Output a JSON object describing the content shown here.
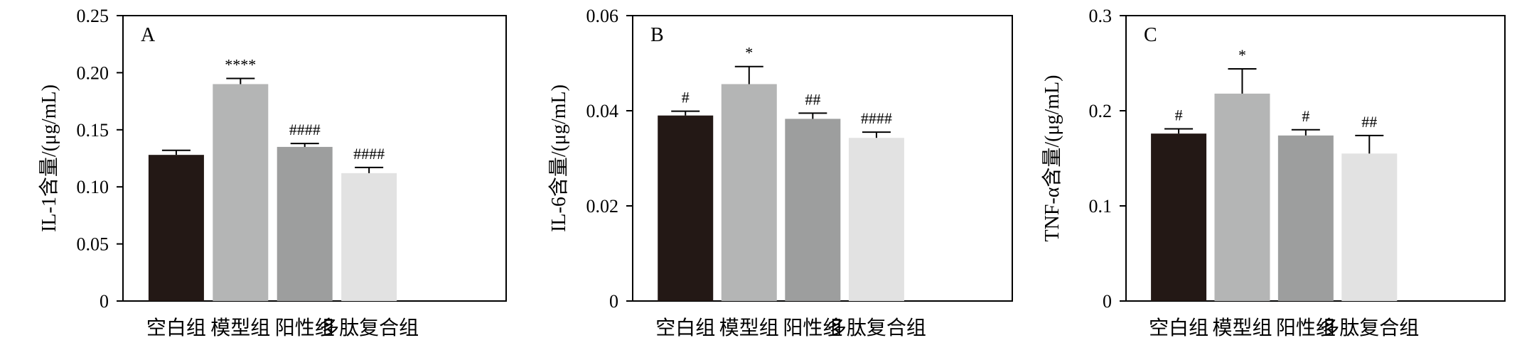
{
  "colors": {
    "bar_fills": [
      "#231815",
      "#b4b5b5",
      "#9d9e9e",
      "#e2e2e2"
    ],
    "axis": "#000000"
  },
  "chart_data": [
    {
      "type": "bar",
      "panel_label": "A",
      "ylabel": "IL-1含量/(μg/mL)",
      "categories": [
        "空白组",
        "模型组",
        "阳性组",
        "多肽复合组"
      ],
      "values": [
        0.128,
        0.19,
        0.135,
        0.112
      ],
      "errors": [
        0.004,
        0.005,
        0.003,
        0.005
      ],
      "significance": [
        "",
        "****",
        "####",
        "####"
      ],
      "ylim": [
        0,
        0.25
      ],
      "yticks": [
        0,
        0.05,
        0.1,
        0.15,
        0.2,
        0.25
      ],
      "ytick_labels": [
        "0",
        "0.05",
        "0.10",
        "0.15",
        "0.20",
        "0.25"
      ]
    },
    {
      "type": "bar",
      "panel_label": "B",
      "ylabel": "IL-6含量/(μg/mL)",
      "categories": [
        "空白组",
        "模型组",
        "阳性组",
        "多肽复合组"
      ],
      "values": [
        0.039,
        0.0456,
        0.0383,
        0.0343
      ],
      "errors": [
        0.0009,
        0.0037,
        0.0012,
        0.0012
      ],
      "significance": [
        "#",
        "*",
        "##",
        "####"
      ],
      "ylim": [
        0,
        0.06
      ],
      "yticks": [
        0,
        0.02,
        0.04,
        0.06
      ],
      "ytick_labels": [
        "0",
        "0.02",
        "0.04",
        "0.06"
      ]
    },
    {
      "type": "bar",
      "panel_label": "C",
      "ylabel": "TNF-α含量/(μg/mL)",
      "categories": [
        "空白组",
        "模型组",
        "阳性组",
        "多肽复合组"
      ],
      "values": [
        0.176,
        0.218,
        0.174,
        0.155
      ],
      "errors": [
        0.005,
        0.026,
        0.006,
        0.019
      ],
      "significance": [
        "#",
        "*",
        "#",
        "##"
      ],
      "ylim": [
        0,
        0.3
      ],
      "yticks": [
        0,
        0.1,
        0.2,
        0.3
      ],
      "ytick_labels": [
        "0",
        "0.1",
        "0.2",
        "0.3"
      ]
    }
  ]
}
